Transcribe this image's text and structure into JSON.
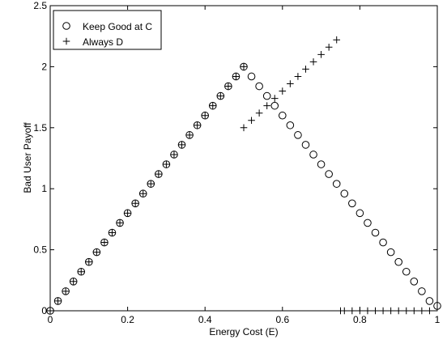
{
  "chart_data": {
    "type": "scatter",
    "xlabel": "Energy Cost (E)",
    "ylabel": "Bad User Payoff",
    "xlim": [
      0,
      1
    ],
    "ylim": [
      0,
      2.5
    ],
    "xticks": [
      "0",
      "0.2",
      "0.4",
      "0.6",
      "0.8",
      "1"
    ],
    "yticks": [
      "0",
      "0.5",
      "1",
      "1.5",
      "2",
      "2.5"
    ],
    "grid": false,
    "legend_position": "top-left",
    "series": [
      {
        "name": "Keep Good at C",
        "marker": "circle",
        "x": [
          0,
          0.02,
          0.04,
          0.06,
          0.08,
          0.1,
          0.12,
          0.14,
          0.16,
          0.18,
          0.2,
          0.22,
          0.24,
          0.26,
          0.28,
          0.3,
          0.32,
          0.34,
          0.36,
          0.38,
          0.4,
          0.42,
          0.44,
          0.46,
          0.48,
          0.5,
          0.52,
          0.54,
          0.56,
          0.58,
          0.6,
          0.62,
          0.64,
          0.66,
          0.68,
          0.7,
          0.72,
          0.74,
          0.76,
          0.78,
          0.8,
          0.82,
          0.84,
          0.86,
          0.88,
          0.9,
          0.92,
          0.94,
          0.96,
          0.98,
          1.0
        ],
        "y": [
          0,
          0.08,
          0.16,
          0.24,
          0.32,
          0.4,
          0.48,
          0.56,
          0.64,
          0.72,
          0.8,
          0.88,
          0.96,
          1.04,
          1.12,
          1.2,
          1.28,
          1.36,
          1.44,
          1.52,
          1.6,
          1.68,
          1.76,
          1.84,
          1.92,
          2.0,
          1.92,
          1.84,
          1.76,
          1.68,
          1.6,
          1.52,
          1.44,
          1.36,
          1.28,
          1.2,
          1.12,
          1.04,
          0.96,
          0.88,
          0.8,
          0.72,
          0.64,
          0.56,
          0.48,
          0.4,
          0.32,
          0.24,
          0.16,
          0.08,
          0.04
        ]
      },
      {
        "name": "Always D",
        "marker": "plus",
        "x": [
          0,
          0.02,
          0.04,
          0.06,
          0.08,
          0.1,
          0.12,
          0.14,
          0.16,
          0.18,
          0.2,
          0.22,
          0.24,
          0.26,
          0.28,
          0.3,
          0.32,
          0.34,
          0.36,
          0.38,
          0.4,
          0.42,
          0.44,
          0.46,
          0.48,
          0.5,
          0.5,
          0.52,
          0.54,
          0.56,
          0.58,
          0.6,
          0.62,
          0.64,
          0.66,
          0.68,
          0.7,
          0.72,
          0.74,
          0.75,
          0.76,
          0.78,
          0.8,
          0.82,
          0.84,
          0.86,
          0.88,
          0.9,
          0.92,
          0.94,
          0.96,
          0.98
        ],
        "y": [
          0,
          0.08,
          0.16,
          0.24,
          0.32,
          0.4,
          0.48,
          0.56,
          0.64,
          0.72,
          0.8,
          0.88,
          0.96,
          1.04,
          1.12,
          1.2,
          1.28,
          1.36,
          1.44,
          1.52,
          1.6,
          1.68,
          1.76,
          1.84,
          1.92,
          2.0,
          1.5,
          1.56,
          1.62,
          1.68,
          1.74,
          1.8,
          1.86,
          1.92,
          1.98,
          2.04,
          2.1,
          2.16,
          2.22,
          0,
          0,
          0,
          0,
          0,
          0,
          0,
          0,
          0,
          0,
          0,
          0,
          0
        ]
      }
    ]
  }
}
